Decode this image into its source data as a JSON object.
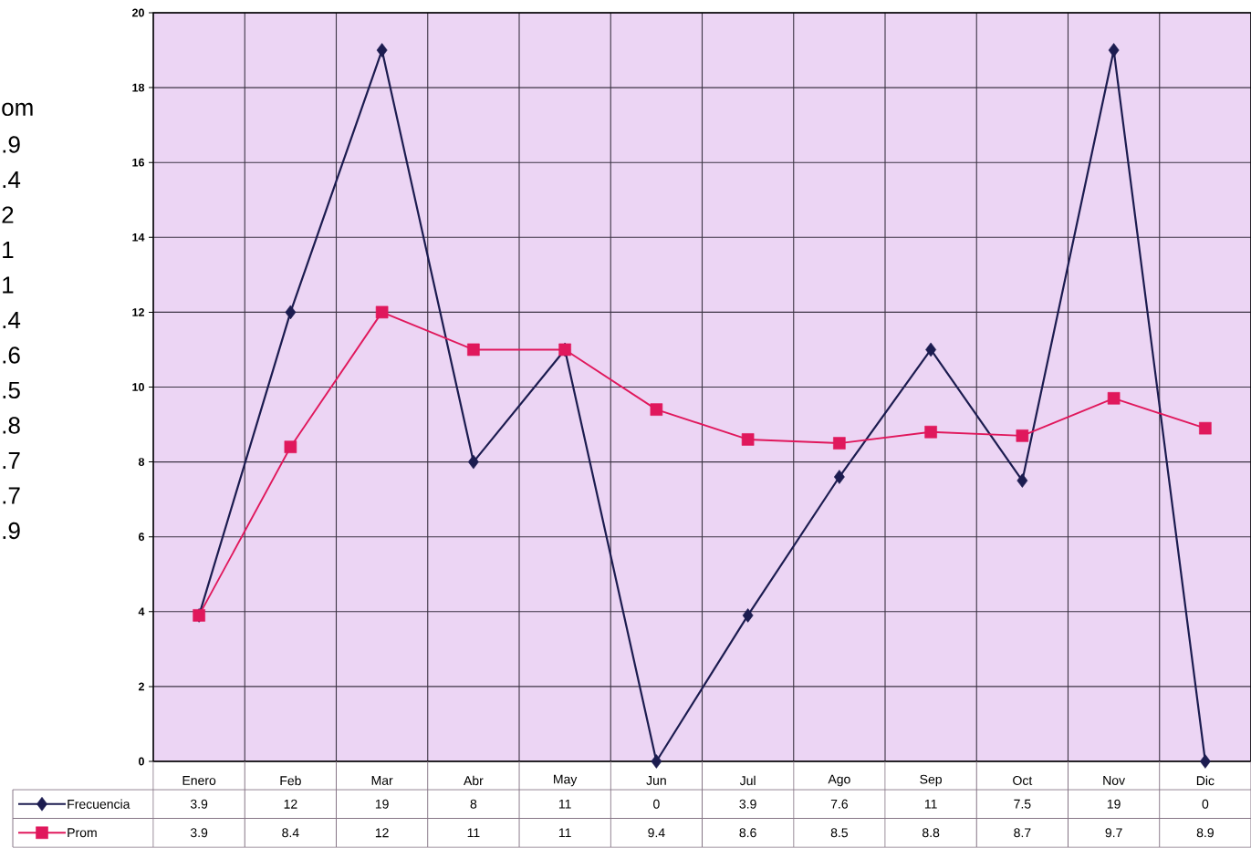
{
  "chart_data": {
    "type": "line",
    "categories": [
      "Enero",
      "Feb",
      "Mar",
      "Abr",
      "May",
      "Jun",
      "Jul",
      "Ago",
      "Sep",
      "Oct",
      "Nov",
      "Dic"
    ],
    "series": [
      {
        "name": "Frecuencia",
        "color": "#1c1c50",
        "marker": "diamond",
        "values": [
          3.9,
          12,
          19,
          8,
          11,
          0,
          3.9,
          7.6,
          11,
          7.5,
          19,
          0
        ]
      },
      {
        "name": "Prom",
        "color": "#e0185c",
        "marker": "square",
        "values": [
          3.9,
          8.4,
          12,
          11,
          11,
          9.4,
          8.6,
          8.5,
          8.8,
          8.7,
          9.7,
          8.9
        ]
      }
    ],
    "ylim": [
      0,
      20
    ],
    "yticks": [
      0,
      2,
      4,
      6,
      8,
      10,
      12,
      14,
      16,
      18,
      20
    ],
    "grid": true,
    "legend": "bottom left",
    "line_style": "solid",
    "data_labels": true,
    "annotations": [
      "om",
      ".9",
      ".4",
      "2",
      "1",
      "1",
      ".4",
      ".6",
      ".5",
      ".8",
      ".7",
      ".7",
      ".9"
    ]
  }
}
